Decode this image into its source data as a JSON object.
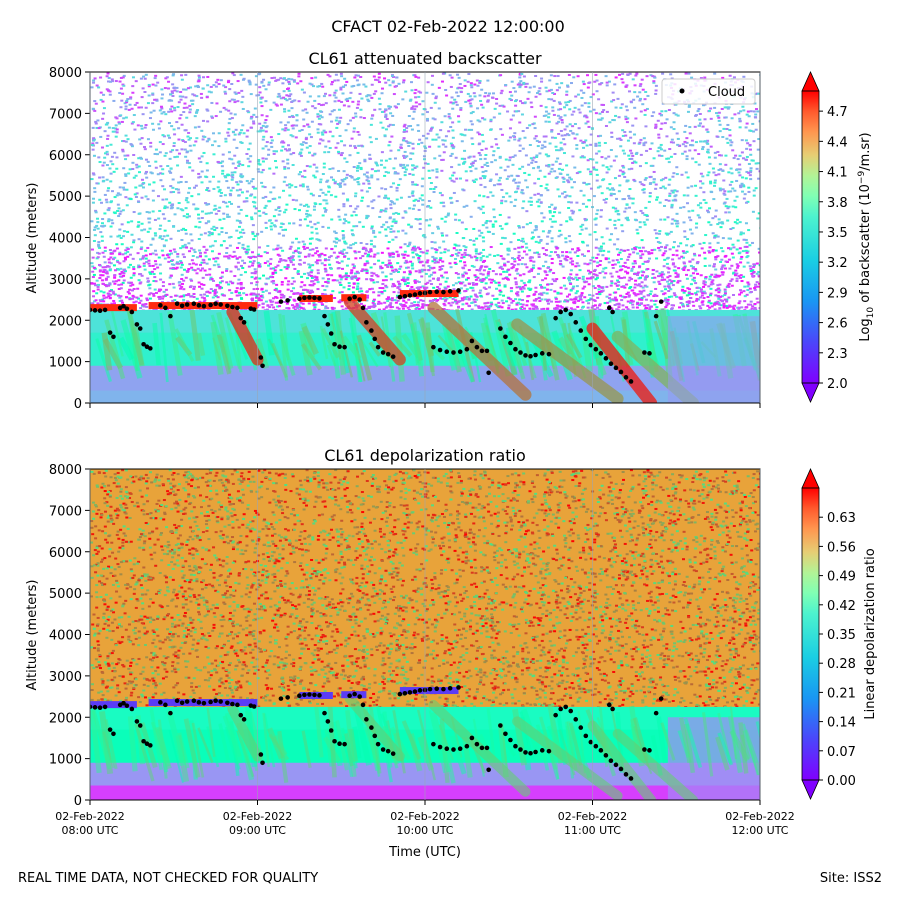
{
  "suptitle": "CFACT 02-Feb-2022 12:00:00",
  "footer": {
    "left": "REAL TIME DATA, NOT CHECKED FOR QUALITY",
    "right": "Site: ISS2"
  },
  "chart_data": [
    {
      "type": "heatmap",
      "title": "CL61 attenuated backscatter",
      "ylabel": "Altitude (meters)",
      "xlabel": "",
      "ylim": [
        0,
        8000
      ],
      "yticks": [
        "0",
        "1000",
        "2000",
        "3000",
        "4000",
        "5000",
        "6000",
        "7000",
        "8000"
      ],
      "legend": {
        "label": "Cloud",
        "position": "top-right"
      },
      "colorbar": {
        "label": "Log10 of backscatter (10^-9/m.sr)",
        "label_parts": [
          "Log",
          "10",
          " of backscatter (10",
          "−9",
          "/m.sr)"
        ],
        "range": [
          2.0,
          4.9
        ],
        "ticks": [
          "2.0",
          "2.3",
          "2.6",
          "2.9",
          "3.2",
          "3.5",
          "3.8",
          "4.1",
          "4.4",
          "4.7"
        ],
        "colormap": "rainbow",
        "extend": "both"
      }
    },
    {
      "type": "heatmap",
      "title": "CL61 depolarization ratio",
      "ylabel": "Altitude (meters)",
      "xlabel": "Time (UTC)",
      "ylim": [
        0,
        8000
      ],
      "yticks": [
        "0",
        "1000",
        "2000",
        "3000",
        "4000",
        "5000",
        "6000",
        "7000",
        "8000"
      ],
      "xticks": [
        {
          "date": "02-Feb-2022",
          "time": "08:00 UTC"
        },
        {
          "date": "02-Feb-2022",
          "time": "09:00 UTC"
        },
        {
          "date": "02-Feb-2022",
          "time": "10:00 UTC"
        },
        {
          "date": "02-Feb-2022",
          "time": "11:00 UTC"
        },
        {
          "date": "02-Feb-2022",
          "time": "12:00 UTC"
        }
      ],
      "colorbar": {
        "label": "Linear depolarization ratio",
        "range": [
          0.0,
          0.7
        ],
        "ticks": [
          "0.00",
          "0.07",
          "0.14",
          "0.21",
          "0.28",
          "0.35",
          "0.42",
          "0.49",
          "0.56",
          "0.63"
        ],
        "colormap": "rainbow",
        "extend": "both"
      }
    }
  ],
  "time_range_hours": [
    8,
    12
  ],
  "cloud_base_points": [
    [
      8.0,
      2250
    ],
    [
      8.03,
      2240
    ],
    [
      8.06,
      2230
    ],
    [
      8.09,
      2250
    ],
    [
      8.12,
      1700
    ],
    [
      8.14,
      1600
    ],
    [
      8.18,
      2300
    ],
    [
      8.2,
      2340
    ],
    [
      8.22,
      2280
    ],
    [
      8.25,
      2200
    ],
    [
      8.28,
      1900
    ],
    [
      8.3,
      1800
    ],
    [
      8.32,
      1420
    ],
    [
      8.34,
      1360
    ],
    [
      8.36,
      1320
    ],
    [
      8.42,
      2360
    ],
    [
      8.45,
      2300
    ],
    [
      8.48,
      2100
    ],
    [
      8.52,
      2400
    ],
    [
      8.55,
      2350
    ],
    [
      8.58,
      2380
    ],
    [
      8.62,
      2400
    ],
    [
      8.65,
      2360
    ],
    [
      8.68,
      2340
    ],
    [
      8.72,
      2370
    ],
    [
      8.75,
      2400
    ],
    [
      8.78,
      2380
    ],
    [
      8.82,
      2350
    ],
    [
      8.85,
      2320
    ],
    [
      8.88,
      2300
    ],
    [
      8.9,
      2050
    ],
    [
      8.92,
      1950
    ],
    [
      8.96,
      2280
    ],
    [
      8.98,
      2260
    ],
    [
      9.02,
      1100
    ],
    [
      9.03,
      900
    ],
    [
      9.14,
      2450
    ],
    [
      9.18,
      2480
    ],
    [
      9.25,
      2520
    ],
    [
      9.28,
      2540
    ],
    [
      9.31,
      2550
    ],
    [
      9.34,
      2540
    ],
    [
      9.37,
      2530
    ],
    [
      9.4,
      2100
    ],
    [
      9.42,
      1900
    ],
    [
      9.44,
      1680
    ],
    [
      9.46,
      1420
    ],
    [
      9.49,
      1360
    ],
    [
      9.52,
      1350
    ],
    [
      9.55,
      2520
    ],
    [
      9.58,
      2560
    ],
    [
      9.61,
      2500
    ],
    [
      9.63,
      2300
    ],
    [
      9.65,
      1950
    ],
    [
      9.68,
      1750
    ],
    [
      9.7,
      1550
    ],
    [
      9.72,
      1350
    ],
    [
      9.75,
      1220
    ],
    [
      9.78,
      1180
    ],
    [
      9.81,
      1120
    ],
    [
      9.85,
      2560
    ],
    [
      9.88,
      2580
    ],
    [
      9.91,
      2600
    ],
    [
      9.94,
      2620
    ],
    [
      9.97,
      2650
    ],
    [
      10.0,
      2660
    ],
    [
      10.03,
      2680
    ],
    [
      10.07,
      2690
    ],
    [
      10.11,
      2680
    ],
    [
      10.15,
      2700
    ],
    [
      10.2,
      2720
    ],
    [
      10.05,
      1350
    ],
    [
      10.09,
      1280
    ],
    [
      10.13,
      1240
    ],
    [
      10.17,
      1220
    ],
    [
      10.21,
      1240
    ],
    [
      10.25,
      1300
    ],
    [
      10.28,
      1500
    ],
    [
      10.31,
      1350
    ],
    [
      10.34,
      1260
    ],
    [
      10.37,
      1260
    ],
    [
      10.38,
      730
    ],
    [
      10.45,
      1800
    ],
    [
      10.48,
      1600
    ],
    [
      10.51,
      1450
    ],
    [
      10.54,
      1300
    ],
    [
      10.57,
      1220
    ],
    [
      10.6,
      1150
    ],
    [
      10.63,
      1130
    ],
    [
      10.66,
      1160
    ],
    [
      10.7,
      1200
    ],
    [
      10.74,
      1180
    ],
    [
      10.78,
      2050
    ],
    [
      10.81,
      2200
    ],
    [
      10.84,
      2250
    ],
    [
      10.87,
      2150
    ],
    [
      10.9,
      1950
    ],
    [
      10.93,
      1750
    ],
    [
      10.96,
      1550
    ],
    [
      10.99,
      1400
    ],
    [
      11.02,
      1300
    ],
    [
      11.05,
      1200
    ],
    [
      11.08,
      1080
    ],
    [
      11.11,
      950
    ],
    [
      11.14,
      850
    ],
    [
      11.17,
      750
    ],
    [
      11.2,
      620
    ],
    [
      11.23,
      520
    ],
    [
      11.31,
      1220
    ],
    [
      11.34,
      1200
    ],
    [
      11.1,
      2300
    ],
    [
      11.12,
      2200
    ],
    [
      11.38,
      2100
    ],
    [
      11.41,
      2450
    ]
  ]
}
